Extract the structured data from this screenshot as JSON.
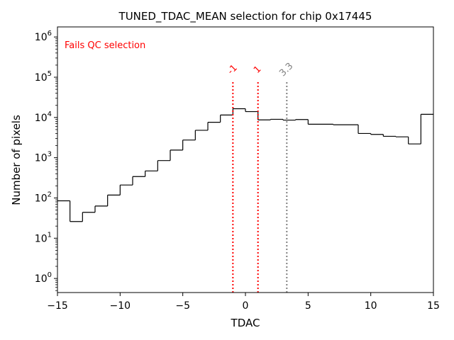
{
  "chart_data": {
    "type": "histogram",
    "title": "TUNED_TDAC_MEAN selection for chip 0x17445",
    "xlabel": "TDAC",
    "ylabel": "Number of pixels",
    "xlim": [
      -15,
      15
    ],
    "ylim_log10": [
      -0.35,
      6.25
    ],
    "yscale": "log",
    "x_ticks": [
      {
        "value": -15,
        "label": "−15"
      },
      {
        "value": -10,
        "label": "−10"
      },
      {
        "value": -5,
        "label": "−5"
      },
      {
        "value": 0,
        "label": "0"
      },
      {
        "value": 5,
        "label": "5"
      },
      {
        "value": 10,
        "label": "10"
      },
      {
        "value": 15,
        "label": "15"
      }
    ],
    "y_ticks": [
      {
        "exp": 0,
        "base": "10",
        "sup": "0"
      },
      {
        "exp": 1,
        "base": "10",
        "sup": "1"
      },
      {
        "exp": 2,
        "base": "10",
        "sup": "2"
      },
      {
        "exp": 3,
        "base": "10",
        "sup": "3"
      },
      {
        "exp": 4,
        "base": "10",
        "sup": "4"
      },
      {
        "exp": 5,
        "base": "10",
        "sup": "5"
      },
      {
        "exp": 6,
        "base": "10",
        "sup": "6"
      }
    ],
    "bin_edges": [
      -15,
      -14,
      -13,
      -12,
      -11,
      -10,
      -9,
      -8,
      -7,
      -6,
      -5,
      -4,
      -3,
      -2,
      -1,
      0,
      1,
      2,
      3,
      4,
      5,
      7,
      9,
      10,
      11,
      12,
      13,
      14,
      15
    ],
    "counts": [
      85,
      26,
      44,
      63,
      118,
      210,
      340,
      470,
      850,
      1550,
      2750,
      4800,
      7600,
      11500,
      16500,
      14000,
      8700,
      9000,
      8600,
      8900,
      6800,
      6600,
      4000,
      3800,
      3400,
      3300,
      2200,
      12000
    ],
    "color": "#000000",
    "vlines": [
      {
        "x": -1,
        "label": "-1",
        "color": "#ff0000"
      },
      {
        "x": 1,
        "label": "1",
        "color": "#ff0000"
      },
      {
        "x": 3.3,
        "label": "3.3",
        "color": "#808080"
      }
    ],
    "annotation": {
      "text": "Fails QC selection",
      "color": "#ff0000",
      "position": "top-left"
    }
  }
}
